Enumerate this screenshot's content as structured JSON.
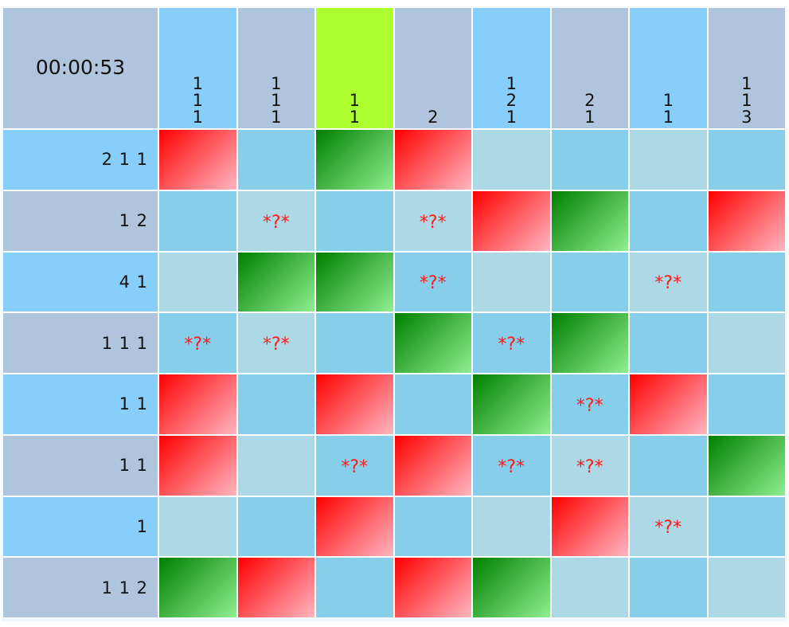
{
  "timer": "00:00:53",
  "colors": {
    "filled": "#ff0000",
    "correct": "#008000",
    "highlight_column": "#adff2f",
    "mark": "#ff1a1a"
  },
  "mark_glyph": "*?*",
  "column_clues": [
    {
      "lines": [
        "1",
        "1",
        "1"
      ],
      "bg": "lightskyblue"
    },
    {
      "lines": [
        "1",
        "1",
        "1"
      ],
      "bg": "lightsteelblue"
    },
    {
      "lines": [
        "",
        "1",
        "1"
      ],
      "bg": "greenyellow"
    },
    {
      "lines": [
        "",
        "",
        "2"
      ],
      "bg": "lightsteelblue"
    },
    {
      "lines": [
        "1",
        "2",
        "1"
      ],
      "bg": "lightskyblue"
    },
    {
      "lines": [
        "",
        "2",
        "1"
      ],
      "bg": "lightsteelblue"
    },
    {
      "lines": [
        "",
        "1",
        "1"
      ],
      "bg": "lightskyblue"
    },
    {
      "lines": [
        "1",
        "1",
        "3"
      ],
      "bg": "lightsteelblue"
    }
  ],
  "rows": [
    {
      "clue": "2 1 1",
      "bg": "lightskyblue",
      "cells": [
        {
          "state": "red",
          "bg": "red",
          "text": ""
        },
        {
          "state": "empty",
          "bg": "skyblue",
          "text": ""
        },
        {
          "state": "green",
          "bg": "green",
          "text": ""
        },
        {
          "state": "red",
          "bg": "red",
          "text": ""
        },
        {
          "state": "empty",
          "bg": "lightblue",
          "text": ""
        },
        {
          "state": "empty",
          "bg": "skyblue",
          "text": ""
        },
        {
          "state": "empty",
          "bg": "lightblue",
          "text": ""
        },
        {
          "state": "empty",
          "bg": "skyblue",
          "text": ""
        }
      ]
    },
    {
      "clue": "1 2",
      "bg": "lightsteelblue",
      "cells": [
        {
          "state": "empty",
          "bg": "skyblue",
          "text": ""
        },
        {
          "state": "marked",
          "bg": "lightblue",
          "text": "*?*"
        },
        {
          "state": "empty",
          "bg": "skyblue",
          "text": ""
        },
        {
          "state": "marked",
          "bg": "lightblue",
          "text": "*?*"
        },
        {
          "state": "red",
          "bg": "red",
          "text": ""
        },
        {
          "state": "green",
          "bg": "green",
          "text": ""
        },
        {
          "state": "empty",
          "bg": "skyblue",
          "text": ""
        },
        {
          "state": "red",
          "bg": "red",
          "text": ""
        }
      ]
    },
    {
      "clue": "4 1",
      "bg": "lightskyblue",
      "cells": [
        {
          "state": "empty",
          "bg": "lightblue",
          "text": ""
        },
        {
          "state": "green",
          "bg": "green",
          "text": ""
        },
        {
          "state": "green",
          "bg": "green",
          "text": ""
        },
        {
          "state": "marked",
          "bg": "skyblue",
          "text": "*?*"
        },
        {
          "state": "empty",
          "bg": "lightblue",
          "text": ""
        },
        {
          "state": "empty",
          "bg": "skyblue",
          "text": ""
        },
        {
          "state": "marked",
          "bg": "lightblue",
          "text": "*?*"
        },
        {
          "state": "empty",
          "bg": "skyblue",
          "text": ""
        }
      ]
    },
    {
      "clue": "1 1 1",
      "bg": "lightsteelblue",
      "cells": [
        {
          "state": "marked",
          "bg": "skyblue",
          "text": "*?*"
        },
        {
          "state": "marked",
          "bg": "lightblue",
          "text": "*?*"
        },
        {
          "state": "empty",
          "bg": "skyblue",
          "text": ""
        },
        {
          "state": "green",
          "bg": "green",
          "text": ""
        },
        {
          "state": "marked",
          "bg": "skyblue",
          "text": "*?*"
        },
        {
          "state": "green",
          "bg": "green",
          "text": ""
        },
        {
          "state": "empty",
          "bg": "skyblue",
          "text": ""
        },
        {
          "state": "empty",
          "bg": "lightblue",
          "text": ""
        }
      ]
    },
    {
      "clue": "1 1",
      "bg": "lightskyblue",
      "cells": [
        {
          "state": "red",
          "bg": "red",
          "text": ""
        },
        {
          "state": "empty",
          "bg": "skyblue",
          "text": ""
        },
        {
          "state": "red",
          "bg": "red",
          "text": ""
        },
        {
          "state": "empty",
          "bg": "skyblue",
          "text": ""
        },
        {
          "state": "green",
          "bg": "green",
          "text": ""
        },
        {
          "state": "marked",
          "bg": "skyblue",
          "text": "*?*"
        },
        {
          "state": "red",
          "bg": "red",
          "text": ""
        },
        {
          "state": "empty",
          "bg": "skyblue",
          "text": ""
        }
      ]
    },
    {
      "clue": "1 1",
      "bg": "lightsteelblue",
      "cells": [
        {
          "state": "red",
          "bg": "red",
          "text": ""
        },
        {
          "state": "empty",
          "bg": "lightblue",
          "text": ""
        },
        {
          "state": "marked",
          "bg": "skyblue",
          "text": "*?*"
        },
        {
          "state": "red",
          "bg": "red",
          "text": ""
        },
        {
          "state": "marked",
          "bg": "skyblue",
          "text": "*?*"
        },
        {
          "state": "marked",
          "bg": "lightblue",
          "text": "*?*"
        },
        {
          "state": "empty",
          "bg": "skyblue",
          "text": ""
        },
        {
          "state": "green",
          "bg": "green",
          "text": ""
        }
      ]
    },
    {
      "clue": "1",
      "bg": "lightskyblue",
      "cells": [
        {
          "state": "empty",
          "bg": "lightblue",
          "text": ""
        },
        {
          "state": "empty",
          "bg": "skyblue",
          "text": ""
        },
        {
          "state": "red",
          "bg": "red",
          "text": ""
        },
        {
          "state": "empty",
          "bg": "skyblue",
          "text": ""
        },
        {
          "state": "empty",
          "bg": "lightblue",
          "text": ""
        },
        {
          "state": "red",
          "bg": "red",
          "text": ""
        },
        {
          "state": "marked",
          "bg": "lightblue",
          "text": "*?*"
        },
        {
          "state": "empty",
          "bg": "skyblue",
          "text": ""
        }
      ]
    },
    {
      "clue": "1 1 2",
      "bg": "lightsteelblue",
      "cells": [
        {
          "state": "green",
          "bg": "green",
          "text": ""
        },
        {
          "state": "red",
          "bg": "red",
          "text": ""
        },
        {
          "state": "empty",
          "bg": "skyblue",
          "text": ""
        },
        {
          "state": "red",
          "bg": "red",
          "text": ""
        },
        {
          "state": "green",
          "bg": "green",
          "text": ""
        },
        {
          "state": "empty",
          "bg": "lightblue",
          "text": ""
        },
        {
          "state": "empty",
          "bg": "skyblue",
          "text": ""
        },
        {
          "state": "empty",
          "bg": "lightblue",
          "text": ""
        }
      ]
    }
  ]
}
